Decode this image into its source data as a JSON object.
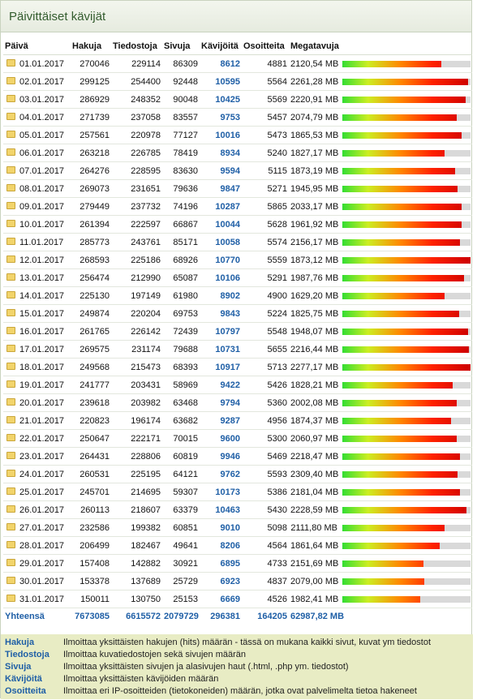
{
  "title": "Päivittäiset kävijät",
  "headers": [
    "Päivä",
    "Hakuja",
    "Tiedostoja",
    "Sivuja",
    "Kävijöitä",
    "Osoitteita",
    "Megatavuja"
  ],
  "bar_max_mb": 2300,
  "rows": [
    {
      "date": "01.01.2017",
      "hakuja": "270046",
      "tiedostoja": "229114",
      "sivuja": "86309",
      "kavijoita": "8612",
      "osoitteita": "4881",
      "mb": "2120,54 MB",
      "mb_value": 2120.54
    },
    {
      "date": "02.01.2017",
      "hakuja": "299125",
      "tiedostoja": "254400",
      "sivuja": "92448",
      "kavijoita": "10595",
      "osoitteita": "5564",
      "mb": "2261,28 MB",
      "mb_value": 2261.28
    },
    {
      "date": "03.01.2017",
      "hakuja": "286929",
      "tiedostoja": "248352",
      "sivuja": "90048",
      "kavijoita": "10425",
      "osoitteita": "5569",
      "mb": "2220,91 MB",
      "mb_value": 2220.91
    },
    {
      "date": "04.01.2017",
      "hakuja": "271739",
      "tiedostoja": "237058",
      "sivuja": "83557",
      "kavijoita": "9753",
      "osoitteita": "5457",
      "mb": "2074,79 MB",
      "mb_value": 2074.79
    },
    {
      "date": "05.01.2017",
      "hakuja": "257561",
      "tiedostoja": "220978",
      "sivuja": "77127",
      "kavijoita": "10016",
      "osoitteita": "5473",
      "mb": "1865,53 MB",
      "mb_value": 1865.53
    },
    {
      "date": "06.01.2017",
      "hakuja": "263218",
      "tiedostoja": "226785",
      "sivuja": "78419",
      "kavijoita": "8934",
      "osoitteita": "5240",
      "mb": "1827,17 MB",
      "mb_value": 1827.17
    },
    {
      "date": "07.01.2017",
      "hakuja": "264276",
      "tiedostoja": "228595",
      "sivuja": "83630",
      "kavijoita": "9594",
      "osoitteita": "5115",
      "mb": "1873,19 MB",
      "mb_value": 1873.19
    },
    {
      "date": "08.01.2017",
      "hakuja": "269073",
      "tiedostoja": "231651",
      "sivuja": "79636",
      "kavijoita": "9847",
      "osoitteita": "5271",
      "mb": "1945,95 MB",
      "mb_value": 1945.95
    },
    {
      "date": "09.01.2017",
      "hakuja": "279449",
      "tiedostoja": "237732",
      "sivuja": "74196",
      "kavijoita": "10287",
      "osoitteita": "5865",
      "mb": "2033,17 MB",
      "mb_value": 2033.17
    },
    {
      "date": "10.01.2017",
      "hakuja": "261394",
      "tiedostoja": "222597",
      "sivuja": "66867",
      "kavijoita": "10044",
      "osoitteita": "5628",
      "mb": "1961,92 MB",
      "mb_value": 1961.92
    },
    {
      "date": "11.01.2017",
      "hakuja": "285773",
      "tiedostoja": "243761",
      "sivuja": "85171",
      "kavijoita": "10058",
      "osoitteita": "5574",
      "mb": "2156,17 MB",
      "mb_value": 2156.17
    },
    {
      "date": "12.01.2017",
      "hakuja": "268593",
      "tiedostoja": "225186",
      "sivuja": "68926",
      "kavijoita": "10770",
      "osoitteita": "5559",
      "mb": "1873,12 MB",
      "mb_value": 1873.12
    },
    {
      "date": "13.01.2017",
      "hakuja": "256474",
      "tiedostoja": "212990",
      "sivuja": "65087",
      "kavijoita": "10106",
      "osoitteita": "5291",
      "mb": "1987,76 MB",
      "mb_value": 1987.76
    },
    {
      "date": "14.01.2017",
      "hakuja": "225130",
      "tiedostoja": "197149",
      "sivuja": "61980",
      "kavijoita": "8902",
      "osoitteita": "4900",
      "mb": "1629,20 MB",
      "mb_value": 1629.2
    },
    {
      "date": "15.01.2017",
      "hakuja": "249874",
      "tiedostoja": "220204",
      "sivuja": "69753",
      "kavijoita": "9843",
      "osoitteita": "5224",
      "mb": "1825,75 MB",
      "mb_value": 1825.75
    },
    {
      "date": "16.01.2017",
      "hakuja": "261765",
      "tiedostoja": "226142",
      "sivuja": "72439",
      "kavijoita": "10797",
      "osoitteita": "5548",
      "mb": "1948,07 MB",
      "mb_value": 1948.07
    },
    {
      "date": "17.01.2017",
      "hakuja": "269575",
      "tiedostoja": "231174",
      "sivuja": "79688",
      "kavijoita": "10731",
      "osoitteita": "5655",
      "mb": "2216,44 MB",
      "mb_value": 2216.44
    },
    {
      "date": "18.01.2017",
      "hakuja": "249568",
      "tiedostoja": "215473",
      "sivuja": "68393",
      "kavijoita": "10917",
      "osoitteita": "5713",
      "mb": "2277,17 MB",
      "mb_value": 2277.17
    },
    {
      "date": "19.01.2017",
      "hakuja": "241777",
      "tiedostoja": "203431",
      "sivuja": "58969",
      "kavijoita": "9422",
      "osoitteita": "5426",
      "mb": "1828,21 MB",
      "mb_value": 1828.21
    },
    {
      "date": "20.01.2017",
      "hakuja": "239618",
      "tiedostoja": "203982",
      "sivuja": "63468",
      "kavijoita": "9794",
      "osoitteita": "5360",
      "mb": "2002,08 MB",
      "mb_value": 2002.08
    },
    {
      "date": "21.01.2017",
      "hakuja": "220823",
      "tiedostoja": "196174",
      "sivuja": "63682",
      "kavijoita": "9287",
      "osoitteita": "4956",
      "mb": "1874,37 MB",
      "mb_value": 1874.37
    },
    {
      "date": "22.01.2017",
      "hakuja": "250647",
      "tiedostoja": "222171",
      "sivuja": "70015",
      "kavijoita": "9600",
      "osoitteita": "5300",
      "mb": "2060,97 MB",
      "mb_value": 2060.97
    },
    {
      "date": "23.01.2017",
      "hakuja": "264431",
      "tiedostoja": "228806",
      "sivuja": "60819",
      "kavijoita": "9946",
      "osoitteita": "5469",
      "mb": "2218,47 MB",
      "mb_value": 2218.47
    },
    {
      "date": "24.01.2017",
      "hakuja": "260531",
      "tiedostoja": "225195",
      "sivuja": "64121",
      "kavijoita": "9762",
      "osoitteita": "5593",
      "mb": "2309,40 MB",
      "mb_value": 2309.4
    },
    {
      "date": "25.01.2017",
      "hakuja": "245701",
      "tiedostoja": "214695",
      "sivuja": "59307",
      "kavijoita": "10173",
      "osoitteita": "5386",
      "mb": "2181,04 MB",
      "mb_value": 2181.04
    },
    {
      "date": "26.01.2017",
      "hakuja": "260113",
      "tiedostoja": "218607",
      "sivuja": "63379",
      "kavijoita": "10463",
      "osoitteita": "5430",
      "mb": "2228,59 MB",
      "mb_value": 2228.59
    },
    {
      "date": "27.01.2017",
      "hakuja": "232586",
      "tiedostoja": "199382",
      "sivuja": "60851",
      "kavijoita": "9010",
      "osoitteita": "5098",
      "mb": "2111,80 MB",
      "mb_value": 2111.8
    },
    {
      "date": "28.01.2017",
      "hakuja": "206499",
      "tiedostoja": "182467",
      "sivuja": "49641",
      "kavijoita": "8206",
      "osoitteita": "4564",
      "mb": "1861,64 MB",
      "mb_value": 1861.64
    },
    {
      "date": "29.01.2017",
      "hakuja": "157408",
      "tiedostoja": "142882",
      "sivuja": "30921",
      "kavijoita": "6895",
      "osoitteita": "4733",
      "mb": "2151,69 MB",
      "mb_value": 2151.69
    },
    {
      "date": "30.01.2017",
      "hakuja": "153378",
      "tiedostoja": "137689",
      "sivuja": "25729",
      "kavijoita": "6923",
      "osoitteita": "4837",
      "mb": "2079,00 MB",
      "mb_value": 2079.0
    },
    {
      "date": "31.01.2017",
      "hakuja": "150011",
      "tiedostoja": "130750",
      "sivuja": "25153",
      "kavijoita": "6669",
      "osoitteita": "4526",
      "mb": "1982,41 MB",
      "mb_value": 1982.41
    }
  ],
  "bar_fractions": [
    0.77,
    0.98,
    0.96,
    0.89,
    0.93,
    0.8,
    0.88,
    0.9,
    0.93,
    0.93,
    0.92,
    1.0,
    0.95,
    0.8,
    0.91,
    0.98,
    0.99,
    1.0,
    0.86,
    0.89,
    0.85,
    0.89,
    0.92,
    0.9,
    0.92,
    0.97,
    0.8,
    0.76,
    0.63,
    0.64,
    0.61
  ],
  "totals": {
    "label": "Yhteensä",
    "hakuja": "7673085",
    "tiedostoja": "6615572",
    "sivuja": "2079729",
    "kavijoita": "296381",
    "osoitteita": "164205",
    "mb": "62987,82 MB"
  },
  "legend": [
    {
      "key": "Hakuja",
      "text": "Ilmoittaa yksittäisten hakujen (hits) määrän - tässä on mukana kaikki sivut, kuvat ym tiedostot"
    },
    {
      "key": "Tiedostoja",
      "text": "Ilmoittaa kuvatiedostojen sekä sivujen määrän"
    },
    {
      "key": "Sivuja",
      "text": "Ilmoittaa yksittäisten sivujen ja alasivujen haut (.html, .php ym. tiedostot)"
    },
    {
      "key": "Kävijöitä",
      "text": "Ilmoittaa yksittäisten kävijöiden määrän"
    },
    {
      "key": "Osoitteita",
      "text": "Ilmoittaa eri IP-osoitteiden (tietokoneiden) määrän, jotka ovat palvelimelta tietoa hakeneet"
    }
  ],
  "colors": {
    "accent": "#1f5fa6",
    "title": "#335c2e",
    "legend_bg": "#e8ecc4"
  }
}
